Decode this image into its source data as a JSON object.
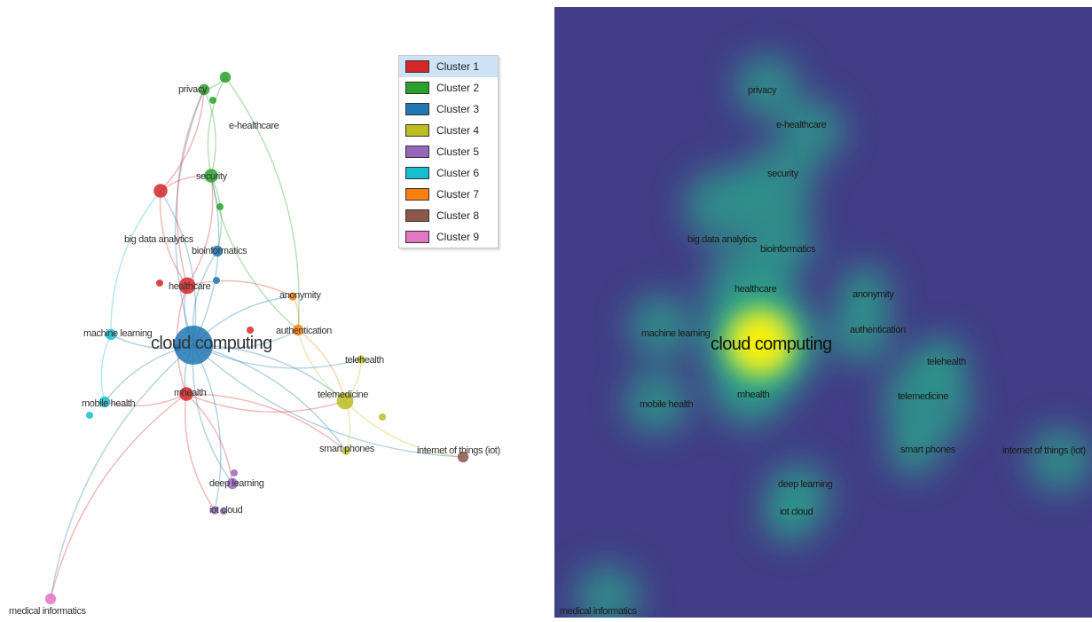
{
  "clusters": [
    {
      "label": "Cluster 1",
      "color": "#d62728"
    },
    {
      "label": "Cluster 2",
      "color": "#2ca02c"
    },
    {
      "label": "Cluster 3",
      "color": "#1f77b4"
    },
    {
      "label": "Cluster 4",
      "color": "#bcbd22"
    },
    {
      "label": "Cluster 5",
      "color": "#9467bd"
    },
    {
      "label": "Cluster 6",
      "color": "#17becf"
    },
    {
      "label": "Cluster 7",
      "color": "#ff7f0e"
    },
    {
      "label": "Cluster 8",
      "color": "#8c564b"
    },
    {
      "label": "Cluster 9",
      "color": "#e377c2"
    }
  ],
  "nodes": [
    {
      "id": "cloud-computing",
      "label": "cloud computing",
      "cluster": 3,
      "weight": 10
    },
    {
      "id": "privacy",
      "label": "privacy",
      "cluster": 2,
      "weight": 2
    },
    {
      "id": "e-healthcare",
      "label": "e-healthcare",
      "cluster": 2,
      "weight": 2
    },
    {
      "id": "security",
      "label": "security",
      "cluster": 2,
      "weight": 3
    },
    {
      "id": "big-data-analytics",
      "label": "big data analytics",
      "cluster": 1,
      "weight": 3
    },
    {
      "id": "bioinformatics",
      "label": "bioinformatics",
      "cluster": 3,
      "weight": 2
    },
    {
      "id": "healthcare",
      "label": "healthcare",
      "cluster": 1,
      "weight": 4
    },
    {
      "id": "anonymity",
      "label": "anonymity",
      "cluster": 7,
      "weight": 1
    },
    {
      "id": "authentication",
      "label": "authentication",
      "cluster": 7,
      "weight": 2
    },
    {
      "id": "machine-learning",
      "label": "machine learning",
      "cluster": 6,
      "weight": 2
    },
    {
      "id": "telehealth",
      "label": "telehealth",
      "cluster": 4,
      "weight": 1
    },
    {
      "id": "mhealth",
      "label": "mhealth",
      "cluster": 1,
      "weight": 3
    },
    {
      "id": "telemedicine",
      "label": "telemedicine",
      "cluster": 4,
      "weight": 4
    },
    {
      "id": "mobile-health",
      "label": "mobile health",
      "cluster": 6,
      "weight": 2
    },
    {
      "id": "smart-phones",
      "label": "smart phones",
      "cluster": 4,
      "weight": 1
    },
    {
      "id": "internet-of-things",
      "label": "internet of things (iot)",
      "cluster": 8,
      "weight": 2
    },
    {
      "id": "deep-learning",
      "label": "deep learning",
      "cluster": 5,
      "weight": 2
    },
    {
      "id": "iot-cloud",
      "label": "iot cloud",
      "cluster": 5,
      "weight": 1
    },
    {
      "id": "medical-informatics",
      "label": "medical informatics",
      "cluster": 9,
      "weight": 2
    }
  ],
  "density_labels": {
    "privacy": "privacy",
    "e_healthcare": "e-healthcare",
    "security": "security",
    "big_data_analytics": "big data analytics",
    "bioinformatics": "bioinformatics",
    "healthcare": "healthcare",
    "anonymity": "anonymity",
    "machine_learning": "machine learning",
    "cloud_computing": "cloud computing",
    "authentication": "authentication",
    "telehealth": "telehealth",
    "mobile_health": "mobile health",
    "mhealth": "mhealth",
    "telemedicine": "telemedicine",
    "smart_phones": "smart phones",
    "internet_of_things": "internet of things (iot)",
    "deep_learning": "deep learning",
    "iot_cloud": "iot cloud",
    "medical_informatics": "medical informatics"
  },
  "colors": {
    "density_background": "#413d86",
    "density_peak": "#f5f000",
    "density_mid": "#2aa88a"
  }
}
